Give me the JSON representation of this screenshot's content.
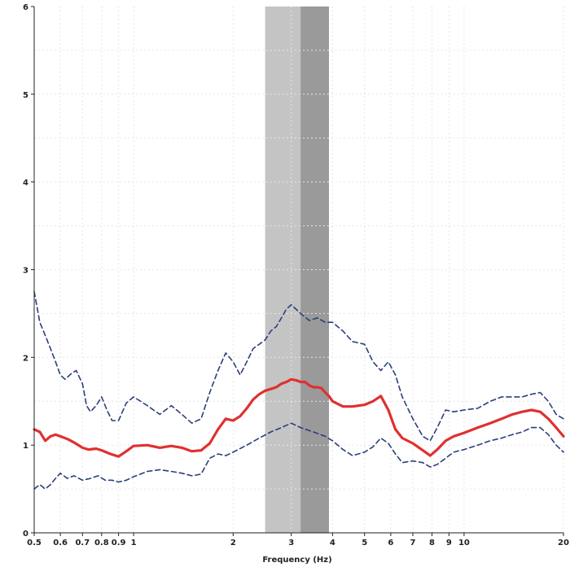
{
  "chart_data": {
    "type": "line",
    "title": "",
    "xlabel": "Frequency (Hz)",
    "ylabel": "",
    "xscale": "log",
    "xlim": [
      0.5,
      20
    ],
    "ylim": [
      0,
      6
    ],
    "grid": true,
    "x_ticks": [
      0.5,
      0.6,
      0.7,
      0.8,
      0.9,
      1,
      2,
      3,
      4,
      5,
      6,
      7,
      8,
      9,
      10,
      20
    ],
    "x_tick_labels": [
      "0.5",
      "0.6",
      "0.7",
      "0.8",
      "0.9",
      "1",
      "2",
      "3",
      "4",
      "5",
      "6",
      "7",
      "8",
      "9",
      "10",
      "20"
    ],
    "y_ticks": [
      0,
      1,
      2,
      3,
      4,
      5,
      6
    ],
    "y_tick_labels": [
      "0",
      "1",
      "2",
      "3",
      "4",
      "5",
      "6"
    ],
    "colors": {
      "mean": "#e03030",
      "bounds": "#2c3e7a",
      "band_light": "#c4c4c4",
      "band_dark": "#9a9a9a",
      "grid": "#e6e6e6",
      "axis": "#222222"
    },
    "bands": [
      {
        "from": 2.5,
        "to": 3.2,
        "shade": "light"
      },
      {
        "from": 3.2,
        "to": 3.9,
        "shade": "dark"
      }
    ],
    "series": [
      {
        "style": "solid",
        "x": [
          0.5,
          0.52,
          0.54,
          0.56,
          0.58,
          0.6,
          0.63,
          0.66,
          0.7,
          0.73,
          0.77,
          0.8,
          0.85,
          0.9,
          0.95,
          1.0,
          1.1,
          1.2,
          1.3,
          1.4,
          1.5,
          1.6,
          1.7,
          1.8,
          1.9,
          2.0,
          2.1,
          2.2,
          2.3,
          2.4,
          2.5,
          2.6,
          2.7,
          2.8,
          2.9,
          3.0,
          3.1,
          3.2,
          3.3,
          3.4,
          3.5,
          3.6,
          3.7,
          3.8,
          3.9,
          4.0,
          4.3,
          4.6,
          5.0,
          5.3,
          5.6,
          5.9,
          6.2,
          6.5,
          7.0,
          7.5,
          7.9,
          8.3,
          8.8,
          9.3,
          10.0,
          11.0,
          12.0,
          13.0,
          14.0,
          15.0,
          16.0,
          17.0,
          18.0,
          19.0,
          20.0
        ],
        "values": [
          1.18,
          1.15,
          1.05,
          1.1,
          1.12,
          1.1,
          1.07,
          1.03,
          0.97,
          0.95,
          0.96,
          0.94,
          0.9,
          0.87,
          0.93,
          0.99,
          1.0,
          0.97,
          0.99,
          0.97,
          0.93,
          0.94,
          1.02,
          1.18,
          1.3,
          1.28,
          1.33,
          1.42,
          1.52,
          1.58,
          1.62,
          1.64,
          1.66,
          1.7,
          1.72,
          1.75,
          1.74,
          1.72,
          1.72,
          1.68,
          1.66,
          1.66,
          1.65,
          1.6,
          1.56,
          1.5,
          1.44,
          1.44,
          1.46,
          1.5,
          1.56,
          1.4,
          1.18,
          1.08,
          1.02,
          0.94,
          0.88,
          0.95,
          1.05,
          1.1,
          1.14,
          1.2,
          1.25,
          1.3,
          1.35,
          1.38,
          1.4,
          1.38,
          1.3,
          1.2,
          1.1
        ]
      },
      {
        "style": "dashed",
        "x": [
          0.5,
          0.52,
          0.54,
          0.56,
          0.58,
          0.6,
          0.62,
          0.65,
          0.67,
          0.7,
          0.72,
          0.74,
          0.77,
          0.8,
          0.83,
          0.86,
          0.9,
          0.95,
          1.0,
          1.05,
          1.1,
          1.2,
          1.3,
          1.4,
          1.5,
          1.6,
          1.7,
          1.8,
          1.9,
          2.0,
          2.1,
          2.2,
          2.3,
          2.4,
          2.5,
          2.6,
          2.7,
          2.8,
          2.9,
          3.0,
          3.1,
          3.2,
          3.4,
          3.6,
          3.8,
          4.0,
          4.3,
          4.6,
          5.0,
          5.3,
          5.6,
          5.9,
          6.2,
          6.5,
          7.0,
          7.5,
          7.9,
          8.3,
          8.8,
          9.3,
          10.0,
          11.0,
          12.0,
          13.0,
          14.0,
          15.0,
          16.0,
          17.0,
          18.0,
          19.0,
          20.0
        ],
        "values": [
          2.75,
          2.4,
          2.25,
          2.1,
          1.95,
          1.8,
          1.75,
          1.82,
          1.85,
          1.7,
          1.45,
          1.38,
          1.45,
          1.55,
          1.4,
          1.28,
          1.28,
          1.48,
          1.55,
          1.5,
          1.45,
          1.35,
          1.45,
          1.35,
          1.25,
          1.3,
          1.6,
          1.85,
          2.05,
          1.95,
          1.8,
          1.95,
          2.1,
          2.15,
          2.2,
          2.3,
          2.35,
          2.45,
          2.55,
          2.6,
          2.55,
          2.5,
          2.42,
          2.45,
          2.4,
          2.4,
          2.3,
          2.18,
          2.15,
          1.95,
          1.85,
          1.95,
          1.8,
          1.55,
          1.3,
          1.1,
          1.05,
          1.2,
          1.4,
          1.38,
          1.4,
          1.42,
          1.5,
          1.55,
          1.55,
          1.55,
          1.58,
          1.6,
          1.5,
          1.35,
          1.3
        ]
      },
      {
        "style": "dashed",
        "x": [
          0.5,
          0.52,
          0.54,
          0.56,
          0.58,
          0.6,
          0.63,
          0.66,
          0.7,
          0.74,
          0.78,
          0.82,
          0.86,
          0.9,
          0.95,
          1.0,
          1.1,
          1.2,
          1.3,
          1.4,
          1.5,
          1.6,
          1.7,
          1.8,
          1.9,
          2.0,
          2.2,
          2.4,
          2.6,
          2.8,
          3.0,
          3.2,
          3.5,
          3.8,
          4.0,
          4.3,
          4.6,
          5.0,
          5.3,
          5.6,
          5.9,
          6.2,
          6.5,
          7.0,
          7.5,
          7.9,
          8.3,
          8.8,
          9.3,
          10.0,
          11.0,
          12.0,
          13.0,
          14.0,
          15.0,
          16.0,
          17.0,
          18.0,
          19.0,
          20.0
        ],
        "values": [
          0.5,
          0.55,
          0.5,
          0.55,
          0.62,
          0.68,
          0.62,
          0.65,
          0.6,
          0.62,
          0.65,
          0.6,
          0.6,
          0.58,
          0.6,
          0.64,
          0.7,
          0.72,
          0.7,
          0.68,
          0.65,
          0.67,
          0.85,
          0.9,
          0.88,
          0.92,
          1.0,
          1.08,
          1.15,
          1.2,
          1.25,
          1.2,
          1.15,
          1.1,
          1.05,
          0.95,
          0.88,
          0.92,
          0.98,
          1.08,
          1.02,
          0.9,
          0.8,
          0.82,
          0.8,
          0.75,
          0.78,
          0.85,
          0.92,
          0.95,
          1.0,
          1.05,
          1.08,
          1.12,
          1.15,
          1.2,
          1.2,
          1.12,
          1.0,
          0.92
        ]
      }
    ]
  }
}
